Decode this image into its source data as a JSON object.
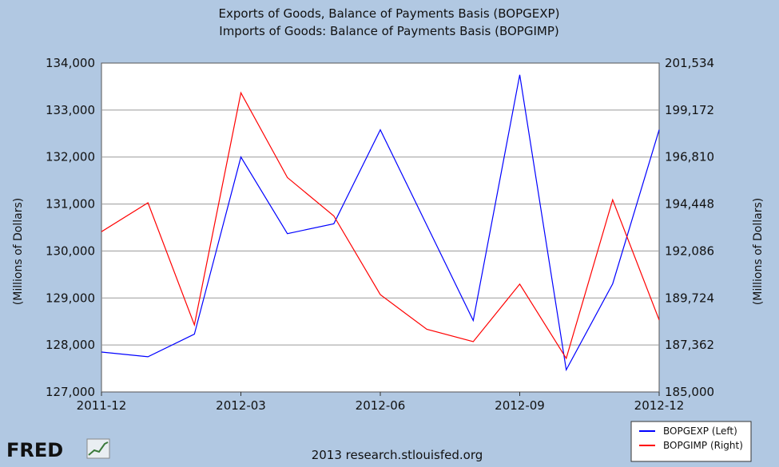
{
  "chart_data": {
    "type": "line",
    "title": [
      "Exports of Goods, Balance of Payments Basis (BOPGEXP)",
      "Imports of Goods: Balance of Payments Basis (BOPGIMP)"
    ],
    "x": [
      "2011-12",
      "2012-01",
      "2012-02",
      "2012-03",
      "2012-04",
      "2012-05",
      "2012-06",
      "2012-07",
      "2012-08",
      "2012-09",
      "2012-10",
      "2012-11",
      "2012-12"
    ],
    "x_tick_labels": [
      "2011-12",
      "2012-03",
      "2012-06",
      "2012-09",
      "2012-12"
    ],
    "left_axis": {
      "label": "(Millions of Dollars)",
      "ylim": [
        127000,
        134000
      ],
      "ticks": [
        127000,
        128000,
        129000,
        130000,
        131000,
        132000,
        133000,
        134000
      ],
      "tick_labels": [
        "127,000",
        "128,000",
        "129,000",
        "130,000",
        "131,000",
        "132,000",
        "133,000",
        "134,000"
      ]
    },
    "right_axis": {
      "label": "(Millions of Dollars)",
      "ylim": [
        185000,
        201534
      ],
      "ticks": [
        185000,
        187362,
        189724,
        192086,
        194448,
        196810,
        199172,
        201534
      ],
      "tick_labels": [
        "185,000",
        "187,362",
        "189,724",
        "192,086",
        "194,448",
        "196,810",
        "199,172",
        "201,534"
      ]
    },
    "series": [
      {
        "name": "BOPGEXP (Left)",
        "axis": "left",
        "color": "#0000ff",
        "values": [
          127850,
          127750,
          128230,
          132000,
          130370,
          130580,
          132580,
          130550,
          128520,
          133750,
          127470,
          129300,
          132580
        ]
      },
      {
        "name": "BOPGIMP (Right)",
        "axis": "right",
        "color": "#ff0000",
        "values": [
          193060,
          194510,
          188370,
          200040,
          195780,
          193850,
          189890,
          188150,
          187530,
          190420,
          186690,
          194660,
          188620
        ]
      }
    ],
    "grid": "horizontal",
    "legend_placement": "bottom-right"
  },
  "footer": {
    "source": "2013 research.stlouisfed.org",
    "logo_text": "FRED"
  }
}
